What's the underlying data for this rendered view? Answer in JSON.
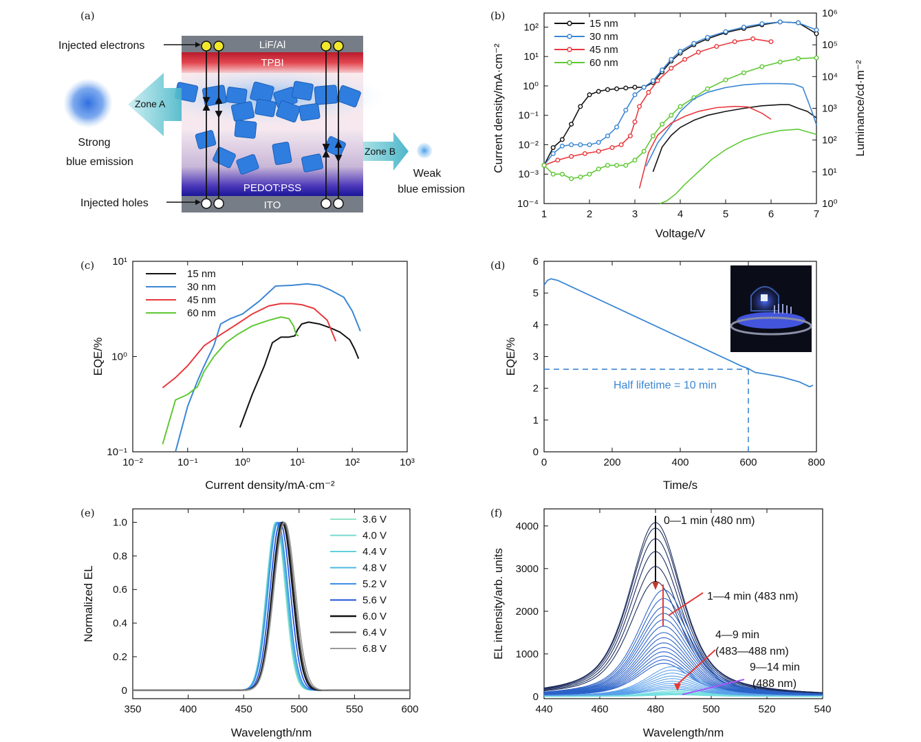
{
  "panel_letters": [
    "(a)",
    "(b)",
    "(c)",
    "(d)",
    "(e)",
    "(f)"
  ],
  "colors": {
    "black": "#111111",
    "blue": "#3a86d4",
    "red": "#e8383d",
    "green": "#5ec832"
  },
  "panel_a": {
    "layers": [
      "LiF/Al",
      "TPBI",
      "PEDOT:PSS",
      "ITO"
    ],
    "left_labels": [
      "Injected electrons",
      "Injected holes"
    ],
    "zone_a": "Zone A",
    "zone_b": "Zone B",
    "strong_emission": [
      "Strong",
      "blue emission"
    ],
    "weak_emission": [
      "Weak",
      "blue emission"
    ]
  },
  "chart_data": [
    {
      "id": "b",
      "type": "line",
      "xlabel": "Voltage/V",
      "ylabel": "Current density/mA·cm⁻²",
      "y2label": "Luminance/cd·m⁻²",
      "xlim": [
        1,
        7
      ],
      "ylim": [
        0.0001,
        300
      ],
      "y2lim": [
        1,
        1000000
      ],
      "yscale": "log",
      "y2scale": "log",
      "x_ticks": [
        "1",
        "2",
        "3",
        "4",
        "5",
        "6",
        "7"
      ],
      "y_ticks": [
        "10⁻⁴",
        "10⁻³",
        "10⁻²",
        "10⁻¹",
        "10⁰",
        "10¹",
        "10²"
      ],
      "y2_ticks": [
        "10⁰",
        "10¹",
        "10²",
        "10³",
        "10⁴",
        "10⁵",
        "10⁶"
      ],
      "legend": "top-left",
      "series": [
        {
          "name": "15 nm",
          "color": "#111111",
          "marker": true,
          "x": [
            1.0,
            1.2,
            1.4,
            1.6,
            1.8,
            2.0,
            2.2,
            2.4,
            2.6,
            2.8,
            3.0,
            3.2,
            3.4,
            3.6,
            3.8,
            4.0,
            4.3,
            4.6,
            5.0,
            5.4,
            5.8,
            6.2,
            6.6,
            7.0
          ],
          "y": [
            0.002,
            0.008,
            0.015,
            0.05,
            0.2,
            0.5,
            0.65,
            0.75,
            0.8,
            0.85,
            0.9,
            0.9,
            1.3,
            3,
            7,
            13,
            25,
            40,
            65,
            90,
            120,
            150,
            140,
            60
          ]
        },
        {
          "name": "30 nm",
          "color": "#3a86d4",
          "marker": true,
          "x": [
            1.0,
            1.2,
            1.4,
            1.6,
            1.8,
            2.0,
            2.2,
            2.4,
            2.6,
            2.8,
            3.0,
            3.2,
            3.4,
            3.6,
            3.8,
            4.0,
            4.3,
            4.6,
            5.0,
            5.4,
            5.8,
            6.2,
            6.6,
            7.0
          ],
          "y": [
            0.002,
            0.005,
            0.009,
            0.01,
            0.01,
            0.01,
            0.012,
            0.02,
            0.04,
            0.15,
            0.5,
            0.9,
            1.5,
            3.5,
            8,
            15,
            28,
            45,
            70,
            100,
            130,
            150,
            140,
            80
          ]
        },
        {
          "name": "45 nm",
          "color": "#e8383d",
          "marker": true,
          "x": [
            1.0,
            1.3,
            1.6,
            1.9,
            2.2,
            2.5,
            2.7,
            2.9,
            3.0,
            3.1,
            3.3,
            3.5,
            3.8,
            4.1,
            4.4,
            4.8,
            5.2,
            5.6,
            6.0
          ],
          "y": [
            0.002,
            0.003,
            0.004,
            0.005,
            0.006,
            0.008,
            0.01,
            0.02,
            0.06,
            0.2,
            0.6,
            1.5,
            4,
            8,
            14,
            22,
            32,
            40,
            32
          ]
        },
        {
          "name": "60 nm",
          "color": "#5ec832",
          "marker": true,
          "x": [
            1.0,
            1.2,
            1.4,
            1.6,
            1.8,
            2.0,
            2.2,
            2.4,
            2.6,
            2.8,
            3.0,
            3.2,
            3.4,
            3.6,
            3.8,
            4.0,
            4.3,
            4.6,
            5.0,
            5.4,
            5.8,
            6.2,
            6.6,
            7.0
          ],
          "y": [
            0.002,
            0.001,
            0.001,
            0.0007,
            0.0008,
            0.001,
            0.0015,
            0.002,
            0.002,
            0.002,
            0.003,
            0.006,
            0.02,
            0.05,
            0.1,
            0.2,
            0.4,
            0.8,
            1.6,
            2.8,
            4.5,
            6.5,
            8.5,
            9
          ]
        },
        {
          "name": "15 nm luminance",
          "axis": "y2",
          "color": "#111111",
          "marker": false,
          "x": [
            3.4,
            3.6,
            3.8,
            4.0,
            4.3,
            4.6,
            5.0,
            5.4,
            5.8,
            6.2,
            6.4,
            6.6,
            6.8,
            7.0
          ],
          "y": [
            10,
            60,
            140,
            250,
            420,
            600,
            800,
            1000,
            1200,
            1300,
            1300,
            1000,
            800,
            500
          ]
        },
        {
          "name": "30 nm luminance",
          "axis": "y2",
          "color": "#3a86d4",
          "marker": false,
          "x": [
            3.25,
            3.5,
            3.8,
            4.0,
            4.3,
            4.6,
            5.0,
            5.4,
            5.8,
            6.2,
            6.5,
            6.7,
            6.9,
            7.0
          ],
          "y": [
            15,
            80,
            300,
            800,
            2000,
            3200,
            4500,
            5500,
            6000,
            6000,
            5800,
            4500,
            800,
            300
          ]
        },
        {
          "name": "45 nm luminance",
          "axis": "y2",
          "color": "#e8383d",
          "marker": false,
          "x": [
            3.1,
            3.3,
            3.5,
            3.8,
            4.1,
            4.4,
            4.8,
            5.2,
            5.5,
            5.8,
            6.0
          ],
          "y": [
            3,
            40,
            140,
            340,
            560,
            800,
            1050,
            1150,
            1100,
            700,
            450
          ]
        },
        {
          "name": "60 nm luminance",
          "axis": "y2",
          "color": "#5ec832",
          "marker": false,
          "x": [
            3.55,
            3.7,
            3.9,
            4.1,
            4.4,
            4.7,
            5.0,
            5.4,
            5.8,
            6.2,
            6.6,
            7.0
          ],
          "y": [
            1,
            1.2,
            2,
            4,
            10,
            25,
            50,
            100,
            150,
            200,
            220,
            150
          ]
        }
      ]
    },
    {
      "id": "c",
      "type": "line",
      "xlabel": "Current density/mA·cm⁻²",
      "ylabel": "EQE/%",
      "xlim": [
        0.01,
        1000
      ],
      "ylim": [
        0.1,
        10
      ],
      "xscale": "log",
      "yscale": "log",
      "x_ticks": [
        "10⁻²",
        "10⁻¹",
        "10⁰",
        "10¹",
        "10²",
        "10³"
      ],
      "y_ticks": [
        "10⁻¹",
        "10⁰",
        "10¹"
      ],
      "legend": "top-left",
      "series": [
        {
          "name": "15 nm",
          "color": "#111111",
          "x": [
            0.9,
            1.5,
            2.5,
            3.5,
            5,
            7,
            9,
            10,
            12,
            16,
            25,
            40,
            60,
            90,
            110,
            130
          ],
          "y": [
            0.18,
            0.4,
            0.8,
            1.4,
            1.6,
            1.6,
            1.65,
            1.9,
            2.2,
            2.3,
            2.2,
            2.0,
            1.8,
            1.5,
            1.2,
            0.95
          ]
        },
        {
          "name": "30 nm",
          "color": "#3a86d4",
          "x": [
            0.06,
            0.1,
            0.15,
            0.2,
            0.3,
            0.4,
            0.6,
            1,
            2,
            4,
            8,
            15,
            25,
            40,
            70,
            100,
            140
          ],
          "y": [
            0.1,
            0.3,
            0.55,
            0.8,
            1.3,
            2.2,
            2.5,
            2.8,
            3.8,
            5.5,
            5.6,
            5.8,
            5.6,
            5.0,
            4.2,
            3.0,
            1.85
          ]
        },
        {
          "name": "45 nm",
          "color": "#e8383d",
          "x": [
            0.035,
            0.06,
            0.1,
            0.2,
            0.4,
            0.8,
            1.5,
            3,
            5,
            8,
            12,
            20,
            35,
            50
          ],
          "y": [
            0.47,
            0.6,
            0.8,
            1.3,
            1.7,
            2.2,
            2.8,
            3.4,
            3.6,
            3.6,
            3.5,
            3.2,
            2.4,
            1.45
          ]
        },
        {
          "name": "60 nm",
          "color": "#5ec832",
          "x": [
            0.035,
            0.06,
            0.1,
            0.15,
            0.2,
            0.3,
            0.5,
            0.8,
            1.5,
            3,
            5,
            7,
            8.5,
            9.5,
            10.5
          ],
          "y": [
            0.12,
            0.35,
            0.4,
            0.48,
            0.7,
            1.0,
            1.4,
            1.7,
            2.1,
            2.4,
            2.6,
            2.5,
            2.1,
            1.7,
            1.65
          ]
        }
      ]
    },
    {
      "id": "d",
      "type": "line",
      "xlabel": "Time/s",
      "ylabel": "EQE/%",
      "xlim": [
        0,
        800
      ],
      "ylim": [
        0,
        6
      ],
      "x_ticks": [
        "0",
        "200",
        "400",
        "600",
        "800"
      ],
      "y_ticks": [
        "0",
        "1",
        "2",
        "3",
        "4",
        "5",
        "6"
      ],
      "annotation": "Half lifetime = 10 min",
      "half_lifetime": {
        "x": 600,
        "y": 2.6
      },
      "series": [
        {
          "name": "EQE",
          "color": "#3a86d4",
          "x": [
            0,
            10,
            20,
            40,
            60,
            80,
            100,
            150,
            200,
            250,
            300,
            350,
            400,
            450,
            500,
            550,
            580,
            600,
            620,
            650,
            700,
            750,
            780,
            790
          ],
          "y": [
            5.25,
            5.4,
            5.45,
            5.4,
            5.3,
            5.2,
            5.1,
            4.85,
            4.6,
            4.35,
            4.1,
            3.85,
            3.6,
            3.35,
            3.1,
            2.85,
            2.7,
            2.62,
            2.5,
            2.45,
            2.35,
            2.2,
            2.05,
            2.1
          ]
        }
      ]
    },
    {
      "id": "e",
      "type": "line",
      "xlabel": "Wavelength/nm",
      "ylabel": "Normalized EL",
      "xlim": [
        350,
        600
      ],
      "ylim": [
        -0.05,
        1.08
      ],
      "x_ticks": [
        "350",
        "400",
        "450",
        "500",
        "550",
        "600"
      ],
      "y_ticks": [
        "0",
        "0.2",
        "0.4",
        "0.6",
        "0.8",
        "1.0"
      ],
      "legend": "top-right",
      "series": [
        {
          "name": "3.6 V",
          "color": "#8fe3c8",
          "peak": 479,
          "sigma": 8.5
        },
        {
          "name": "4.0 V",
          "color": "#77d8cf",
          "peak": 479.5,
          "sigma": 8.6
        },
        {
          "name": "4.4 V",
          "color": "#5fd0dc",
          "peak": 480,
          "sigma": 8.7
        },
        {
          "name": "4.8 V",
          "color": "#4bb8e4",
          "peak": 480,
          "sigma": 8.8
        },
        {
          "name": "5.2 V",
          "color": "#3a8ee6",
          "peak": 481,
          "sigma": 8.9
        },
        {
          "name": "5.6 V",
          "color": "#1e4fd8",
          "peak": 483,
          "sigma": 9.0
        },
        {
          "name": "6.0 V",
          "color": "#111111",
          "peak": 485,
          "sigma": 9.1
        },
        {
          "name": "6.4 V",
          "color": "#555555",
          "peak": 486,
          "sigma": 9.3
        },
        {
          "name": "6.8 V",
          "color": "#9a9a9a",
          "peak": 487,
          "sigma": 9.6
        }
      ]
    },
    {
      "id": "f",
      "type": "line",
      "xlabel": "Wavelength/nm",
      "ylabel": "EL intensity/arb. units",
      "xlim": [
        440,
        540
      ],
      "ylim": [
        -50,
        4400
      ],
      "x_ticks": [
        "440",
        "460",
        "480",
        "500",
        "520",
        "540"
      ],
      "y_ticks": [
        "0",
        "1000",
        "2000",
        "3000",
        "4000"
      ],
      "annotations": [
        "0—1 min (480 nm)",
        "1—4 min (483 nm)",
        "4—9 min",
        "(483—488 nm)",
        "9—14 min",
        "(488 nm)"
      ],
      "families": [
        {
          "color": "#1c2c5e",
          "peaks": [
            4080,
            3950,
            3700,
            3400,
            3050,
            2700
          ],
          "center": 480
        },
        {
          "color": "#2c63c8",
          "peaks": [
            2500,
            2300,
            2100,
            1950,
            1800,
            1650,
            1500,
            1380,
            1260,
            1150,
            1050,
            950,
            860,
            780
          ],
          "center": 483
        },
        {
          "color": "#5aa0ea",
          "peaks": [
            700,
            620,
            550,
            480,
            420,
            360,
            310,
            260,
            220,
            180
          ],
          "center": 486
        },
        {
          "color": "#74dfe0",
          "peaks": [
            150,
            120,
            95,
            75,
            55,
            40
          ],
          "center": 488
        }
      ]
    }
  ]
}
